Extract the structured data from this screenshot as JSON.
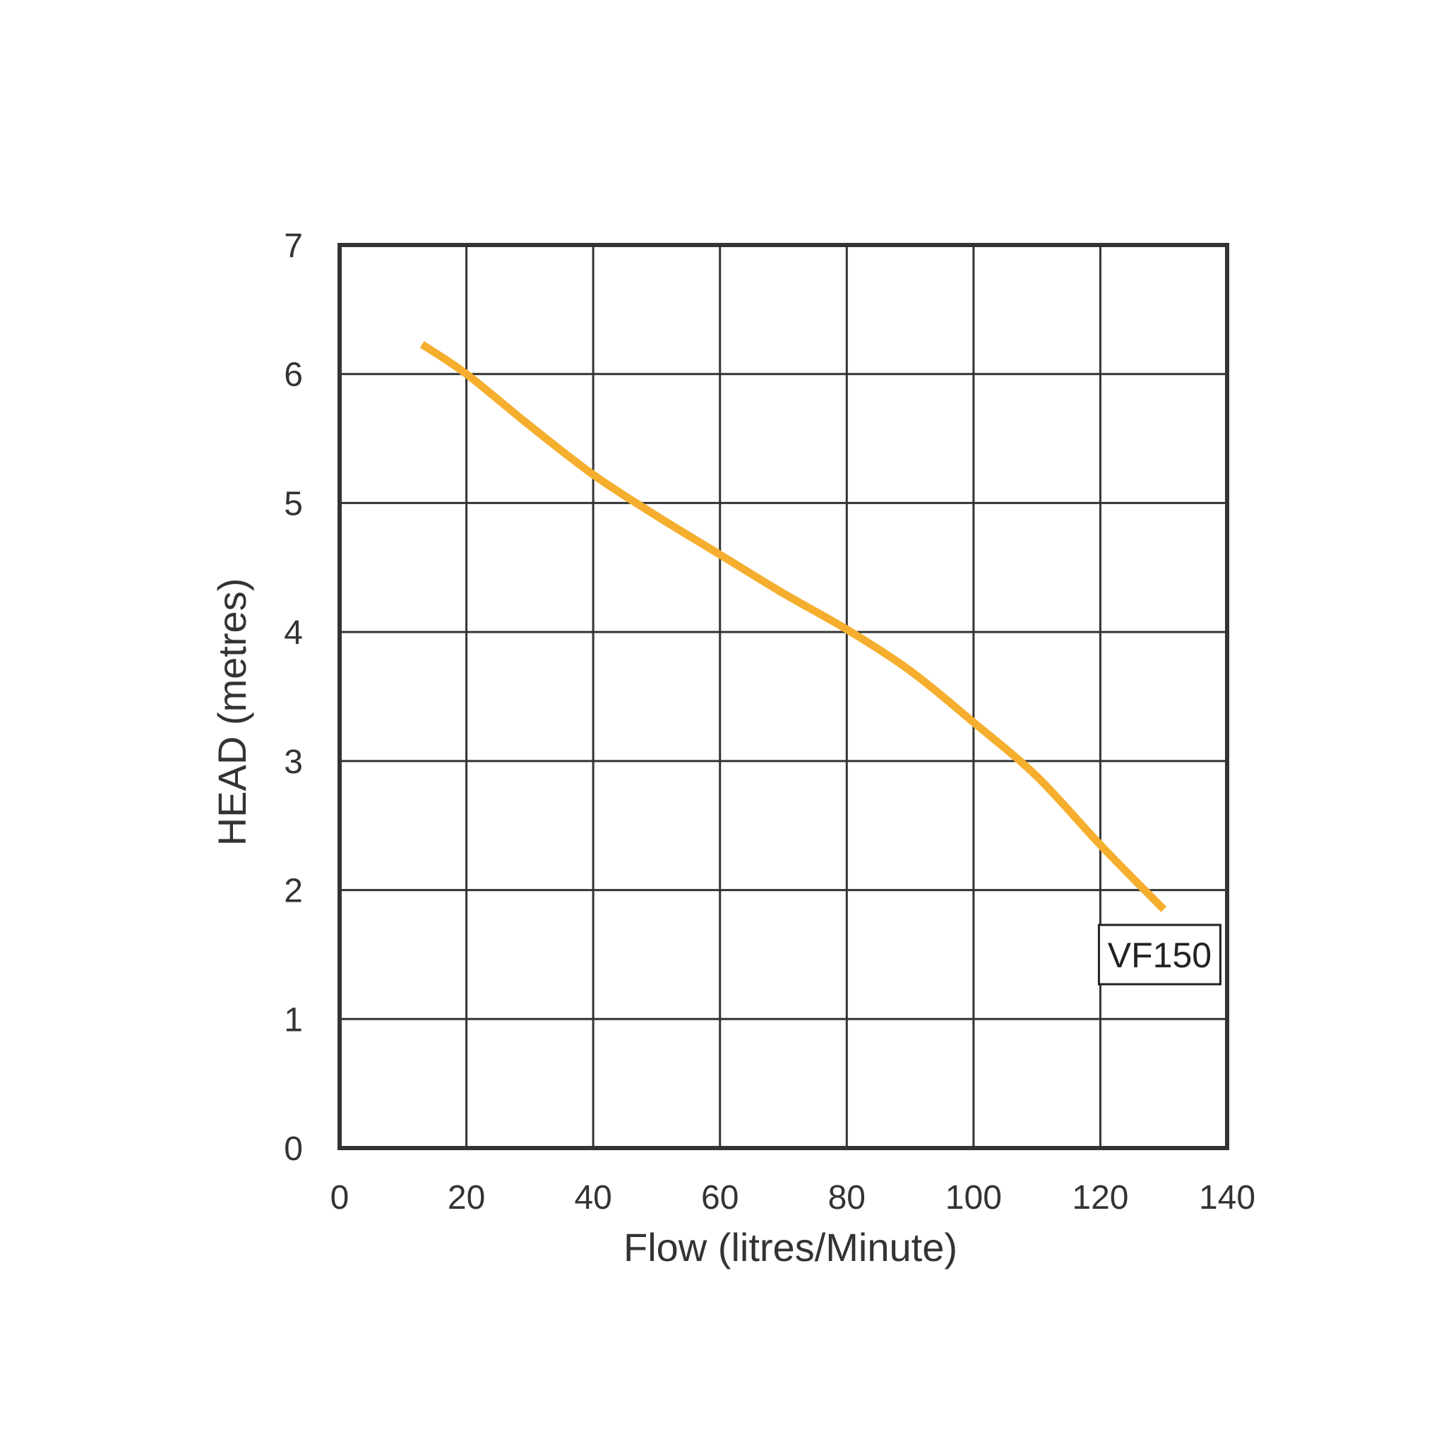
{
  "chart_data": {
    "type": "line",
    "title": "",
    "xlabel": "Flow (litres/Minute)",
    "ylabel": "HEAD (metres)",
    "xlim": [
      0,
      140
    ],
    "ylim": [
      0,
      7
    ],
    "x_ticks": [
      "0",
      "20",
      "40",
      "60",
      "80",
      "100",
      "120",
      "140"
    ],
    "y_ticks": [
      "0",
      "1",
      "2",
      "3",
      "4",
      "5",
      "6",
      "7"
    ],
    "grid": true,
    "series": [
      {
        "name": "VF150",
        "color": "#F5AE2D",
        "x": [
          13,
          20,
          30,
          40,
          50,
          60,
          70,
          80,
          90,
          100,
          110,
          120,
          130
        ],
        "y": [
          6.23,
          6.0,
          5.6,
          5.22,
          4.9,
          4.6,
          4.3,
          4.02,
          3.7,
          3.3,
          2.88,
          2.35,
          1.85
        ]
      }
    ],
    "annotations": [
      {
        "text": "VF150",
        "x": 130,
        "y": 1.85
      }
    ]
  },
  "colors": {
    "grid": "#333333",
    "text": "#333333",
    "background": "#ffffff"
  }
}
